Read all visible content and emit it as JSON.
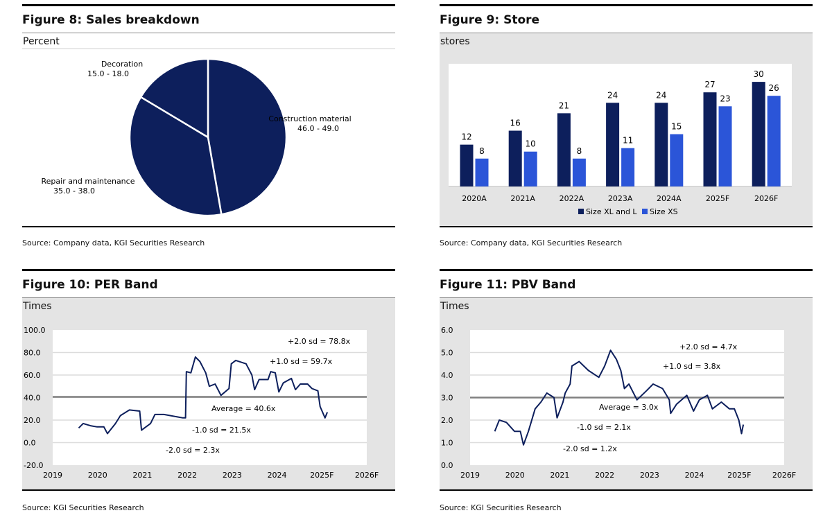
{
  "colors": {
    "navy": "#0d1f5c",
    "blue": "#2b55d8",
    "panel_bg": "#e4e4e4",
    "average_line": "#808080",
    "grid": "#dcdcdc"
  },
  "chart_data": [
    {
      "type": "pie",
      "title": "Figure 8: Sales breakdown",
      "unit_label": "Percent",
      "source": "Source: Company data, KGI Securities Research",
      "slices": [
        {
          "label": "Construction material",
          "range": "46.0 - 49.0",
          "value": 47.5
        },
        {
          "label": "Repair and maintenance",
          "range": "35.0 - 38.0",
          "value": 36.5
        },
        {
          "label": "Decoration",
          "range": "15.0 - 18.0",
          "value": 16.5
        }
      ]
    },
    {
      "type": "bar",
      "title": "Figure 9: Store",
      "unit_label": "stores",
      "source": "Source: Company data, KGI Securities Research",
      "categories": [
        "2020A",
        "2021A",
        "2022A",
        "2023A",
        "2024A",
        "2025F",
        "2026F"
      ],
      "series": [
        {
          "name": "Size XL and L",
          "values": [
            12,
            16,
            21,
            24,
            24,
            27,
            30
          ]
        },
        {
          "name": "Size XS",
          "values": [
            8,
            10,
            8,
            11,
            15,
            23,
            26
          ]
        }
      ],
      "ylim": [
        0,
        35
      ],
      "legend": "bottom"
    },
    {
      "type": "line",
      "title": "Figure 10: PER Band",
      "unit_label": "Times",
      "source": "Source: KGI Securities Research",
      "ylim": [
        -20,
        100
      ],
      "yticks": [
        "100.0",
        "80.0",
        "60.0",
        "40.0",
        "20.0",
        "0.0",
        "-20.0"
      ],
      "ytick_values": [
        100,
        80,
        60,
        40,
        20,
        0,
        -20
      ],
      "xticks": [
        "2019",
        "2020",
        "2021",
        "2022",
        "2023",
        "2024",
        "2025F",
        "2026F"
      ],
      "xlim": [
        2019,
        2026
      ],
      "average": 40.6,
      "annotations": [
        "+2.0 sd = 78.8x",
        "+1.0 sd = 59.7x",
        "Average = 40.6x",
        "-1.0 sd = 21.5x",
        "-2.0 sd = 2.3x"
      ],
      "x": [
        2019.58,
        2019.68,
        2019.84,
        2019.99,
        2020.14,
        2020.22,
        2020.4,
        2020.51,
        2020.71,
        2020.94,
        2020.98,
        2021.18,
        2021.28,
        2021.48,
        2021.9,
        2021.96,
        2021.98,
        2022.08,
        2022.18,
        2022.28,
        2022.41,
        2022.49,
        2022.62,
        2022.75,
        2022.93,
        2022.98,
        2023.08,
        2023.31,
        2023.44,
        2023.5,
        2023.6,
        2023.8,
        2023.86,
        2023.96,
        2024.04,
        2024.14,
        2024.32,
        2024.41,
        2024.52,
        2024.68,
        2024.78,
        2024.91,
        2024.96,
        2025.07,
        2025.12
      ],
      "y": [
        13,
        17,
        15,
        14,
        14,
        8,
        17,
        24,
        29,
        28,
        11,
        17,
        25,
        25,
        22,
        22,
        63,
        62,
        76,
        72,
        62,
        50,
        52,
        42,
        48,
        70,
        73,
        70,
        60,
        47,
        56,
        56,
        63,
        62,
        45,
        53,
        57,
        47,
        52,
        52,
        48,
        46,
        32,
        22,
        27
      ]
    },
    {
      "type": "line",
      "title": "Figure 11: PBV Band",
      "unit_label": "Times",
      "source": "Source: KGI Securities Research",
      "ylim": [
        0,
        6
      ],
      "yticks": [
        "6.0",
        "5.0",
        "4.0",
        "3.0",
        "2.0",
        "1.0",
        "0.0"
      ],
      "ytick_values": [
        6,
        5,
        4,
        3,
        2,
        1,
        0
      ],
      "xticks": [
        "2019",
        "2020",
        "2021",
        "2022",
        "2023",
        "2024",
        "2025F",
        "2026F"
      ],
      "xlim": [
        2019,
        2026
      ],
      "average": 3.0,
      "annotations": [
        "+2.0 sd = 4.7x",
        "+1.0 sd = 3.8x",
        "Average = 3.0x",
        "-1.0 sd = 2.1x",
        "-2.0 sd = 1.2x"
      ],
      "x": [
        2019.55,
        2019.65,
        2019.81,
        2019.99,
        2020.12,
        2020.19,
        2020.3,
        2020.45,
        2020.58,
        2020.71,
        2020.87,
        2020.94,
        2021.07,
        2021.12,
        2021.23,
        2021.27,
        2021.43,
        2021.64,
        2021.87,
        2022.0,
        2022.13,
        2022.26,
        2022.36,
        2022.44,
        2022.54,
        2022.72,
        2022.93,
        2023.08,
        2023.29,
        2023.44,
        2023.47,
        2023.6,
        2023.83,
        2023.98,
        2024.11,
        2024.29,
        2024.4,
        2024.6,
        2024.78,
        2024.89,
        2024.99,
        2025.05,
        2025.09
      ],
      "y": [
        1.5,
        2.0,
        1.9,
        1.5,
        1.5,
        0.9,
        1.5,
        2.5,
        2.8,
        3.2,
        3.0,
        2.1,
        2.8,
        3.2,
        3.6,
        4.4,
        4.6,
        4.2,
        3.9,
        4.4,
        5.1,
        4.7,
        4.2,
        3.4,
        3.6,
        2.9,
        3.3,
        3.6,
        3.4,
        2.9,
        2.3,
        2.7,
        3.1,
        2.4,
        2.9,
        3.1,
        2.5,
        2.8,
        2.5,
        2.5,
        2.0,
        1.4,
        1.8
      ]
    }
  ]
}
